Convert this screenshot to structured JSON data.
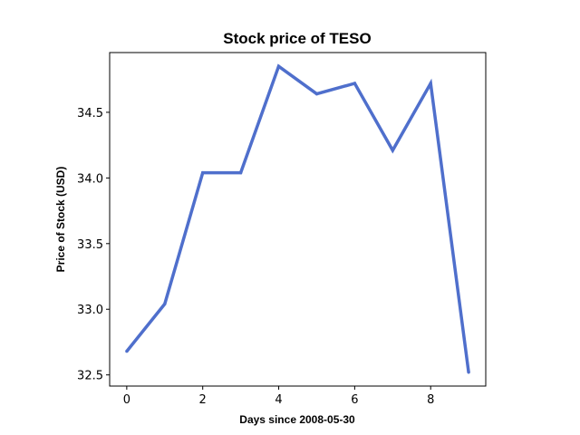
{
  "chart_data": {
    "type": "line",
    "title": "Stock price of TESO",
    "xlabel": "Days since 2008-05-30",
    "ylabel": "Price of Stock (USD)",
    "x": [
      0,
      1,
      2,
      3,
      4,
      5,
      6,
      7,
      8,
      9
    ],
    "series": [
      {
        "values": [
          32.68,
          33.04,
          34.04,
          34.04,
          34.85,
          34.64,
          34.72,
          34.21,
          34.72,
          32.52
        ],
        "color": "#4f6fcc"
      }
    ],
    "xlim": [
      -0.45,
      9.45
    ],
    "ylim": [
      32.415,
      34.955
    ],
    "xticks": [
      0,
      2,
      4,
      6,
      8
    ],
    "xtick_labels": [
      "0",
      "2",
      "4",
      "6",
      "8"
    ],
    "yticks": [
      32.5,
      33.0,
      33.5,
      34.0,
      34.5
    ],
    "ytick_labels": [
      "32.5",
      "33.0",
      "33.5",
      "34.0",
      "34.5"
    ],
    "grid": false,
    "legend": "none"
  }
}
